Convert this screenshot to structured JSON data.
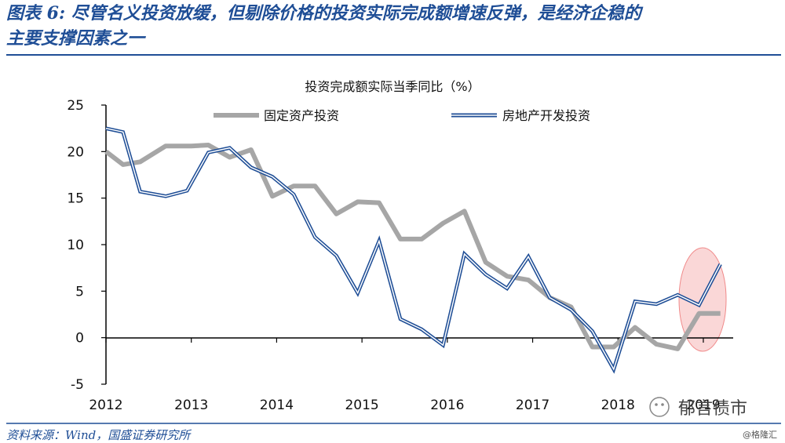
{
  "header": {
    "title_line1": "图表 6: 尽管名义投资放缓，但剔除价格的投资实际完成额增速反弹，是经济企稳的",
    "title_line2": "主要支撑因素之一"
  },
  "footer": {
    "source": "资料来源：Wind，国盛证券研究所"
  },
  "watermark": {
    "main": "郁言债市",
    "sub": "@格隆汇"
  },
  "colors": {
    "brand": "#1f4e96",
    "fixed_asset": "#a6a6a6",
    "real_estate": "#1f4e96",
    "highlight": "#f4a7a7"
  },
  "chart_data": {
    "type": "line",
    "title": "投资完成额实际当季同比（%）",
    "xlabel": "",
    "ylabel": "",
    "ylim": [
      -5,
      25
    ],
    "yticks": [
      -5,
      0,
      5,
      10,
      15,
      20,
      25
    ],
    "xlim": [
      2012,
      2019.35
    ],
    "xticks": [
      2012,
      2013,
      2014,
      2015,
      2016,
      2017,
      2018,
      2019
    ],
    "grid": false,
    "legend_position": "top",
    "series": [
      {
        "name": "固定资产投资",
        "style": "thick-gray",
        "x": [
          2012.0,
          2012.2,
          2012.4,
          2012.7,
          2013.0,
          2013.2,
          2013.45,
          2013.7,
          2013.95,
          2014.2,
          2014.45,
          2014.7,
          2014.95,
          2015.2,
          2015.45,
          2015.7,
          2015.95,
          2016.2,
          2016.45,
          2016.7,
          2016.95,
          2017.2,
          2017.45,
          2017.7,
          2017.95,
          2018.2,
          2018.45,
          2018.7,
          2018.95,
          2019.2
        ],
        "y": [
          20.0,
          18.6,
          18.9,
          20.6,
          20.6,
          20.7,
          19.4,
          20.2,
          15.2,
          16.3,
          16.3,
          13.3,
          14.6,
          14.5,
          10.6,
          10.6,
          12.3,
          13.6,
          8.1,
          6.6,
          6.2,
          4.3,
          3.3,
          -1.0,
          -1.0,
          1.1,
          -0.7,
          -1.2,
          2.6,
          2.6
        ]
      },
      {
        "name": "房地产开发投资",
        "style": "double-blue",
        "x": [
          2012.0,
          2012.2,
          2012.4,
          2012.7,
          2012.95,
          2013.2,
          2013.45,
          2013.7,
          2013.95,
          2014.2,
          2014.45,
          2014.7,
          2014.95,
          2015.2,
          2015.45,
          2015.7,
          2015.95,
          2016.2,
          2016.45,
          2016.7,
          2016.95,
          2017.2,
          2017.45,
          2017.7,
          2017.95,
          2018.2,
          2018.45,
          2018.7,
          2018.95,
          2019.2
        ],
        "y": [
          22.5,
          22.1,
          15.7,
          15.2,
          15.8,
          19.9,
          20.4,
          18.3,
          17.3,
          15.4,
          10.8,
          8.8,
          4.8,
          10.4,
          2.0,
          0.9,
          -0.8,
          9.0,
          6.8,
          5.3,
          8.7,
          4.3,
          3.0,
          0.7,
          -3.4,
          3.9,
          3.6,
          4.6,
          3.5,
          7.9
        ]
      }
    ]
  }
}
